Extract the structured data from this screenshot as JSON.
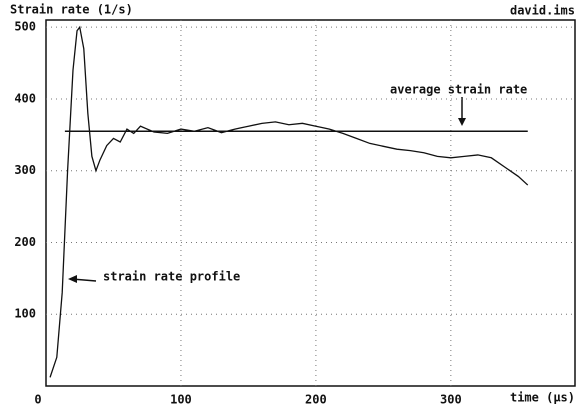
{
  "chart_data": {
    "type": "line",
    "ylabel": "Strain rate (1/s)",
    "file_label": "david.ims",
    "xlabel": "time (μs)",
    "x": [
      3,
      8,
      12,
      16,
      20,
      23,
      25,
      28,
      31,
      34,
      37,
      40,
      45,
      50,
      55,
      60,
      65,
      70,
      80,
      90,
      100,
      110,
      120,
      130,
      140,
      150,
      160,
      170,
      180,
      190,
      200,
      210,
      220,
      230,
      240,
      250,
      260,
      270,
      280,
      290,
      300,
      310,
      320,
      330,
      340,
      350,
      357
    ],
    "series": [
      {
        "color": "#111",
        "values": [
          12,
          40,
          130,
          300,
          440,
          495,
          500,
          470,
          380,
          320,
          300,
          315,
          335,
          345,
          340,
          358,
          352,
          362,
          354,
          352,
          358,
          355,
          360,
          353,
          358,
          362,
          366,
          368,
          364,
          366,
          362,
          358,
          352,
          345,
          338,
          334,
          330,
          328,
          325,
          320,
          318,
          320,
          322,
          318,
          305,
          292,
          280
        ]
      }
    ],
    "average": {
      "text": "average strain rate",
      "value": 355,
      "x": [
        14,
        357
      ]
    },
    "profile_label": "strain rate profile",
    "xlim": [
      0,
      392
    ],
    "ylim": [
      0,
      510
    ],
    "xticks": [
      0,
      100,
      200,
      300
    ],
    "yticks": [
      100,
      200,
      300,
      400,
      500
    ],
    "grid": true
  }
}
